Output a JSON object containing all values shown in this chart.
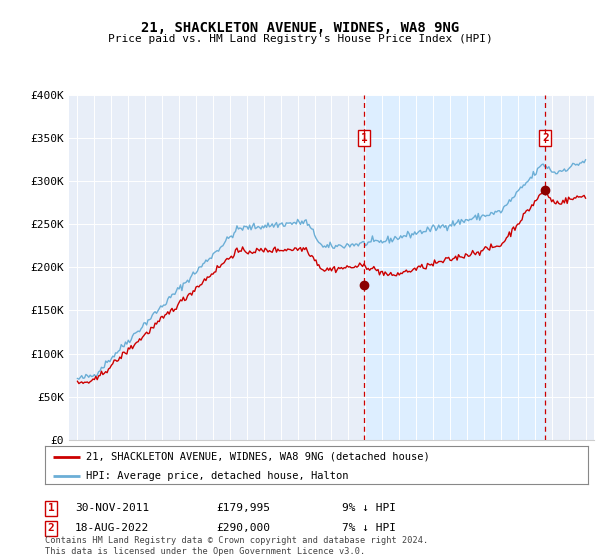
{
  "title": "21, SHACKLETON AVENUE, WIDNES, WA8 9NG",
  "subtitle": "Price paid vs. HM Land Registry's House Price Index (HPI)",
  "ylabel_ticks": [
    "£0",
    "£50K",
    "£100K",
    "£150K",
    "£200K",
    "£250K",
    "£300K",
    "£350K",
    "£400K"
  ],
  "ytick_values": [
    0,
    50000,
    100000,
    150000,
    200000,
    250000,
    300000,
    350000,
    400000
  ],
  "ylim": [
    0,
    400000
  ],
  "year_start": 1995,
  "year_end": 2025,
  "hpi_color": "#6baed6",
  "price_color": "#cc0000",
  "shade_color": "#ddeeff",
  "marker1_year": 2011.917,
  "marker1_price": 179995,
  "marker2_year": 2022.625,
  "marker2_price": 290000,
  "marker1_label": "30-NOV-2011",
  "marker1_value": "£179,995",
  "marker1_hpi": "9% ↓ HPI",
  "marker2_label": "18-AUG-2022",
  "marker2_value": "£290,000",
  "marker2_hpi": "7% ↓ HPI",
  "legend_line1": "21, SHACKLETON AVENUE, WIDNES, WA8 9NG (detached house)",
  "legend_line2": "HPI: Average price, detached house, Halton",
  "footer": "Contains HM Land Registry data © Crown copyright and database right 2024.\nThis data is licensed under the Open Government Licence v3.0.",
  "bg_color": "white",
  "plot_bg_color": "#e8eef8"
}
